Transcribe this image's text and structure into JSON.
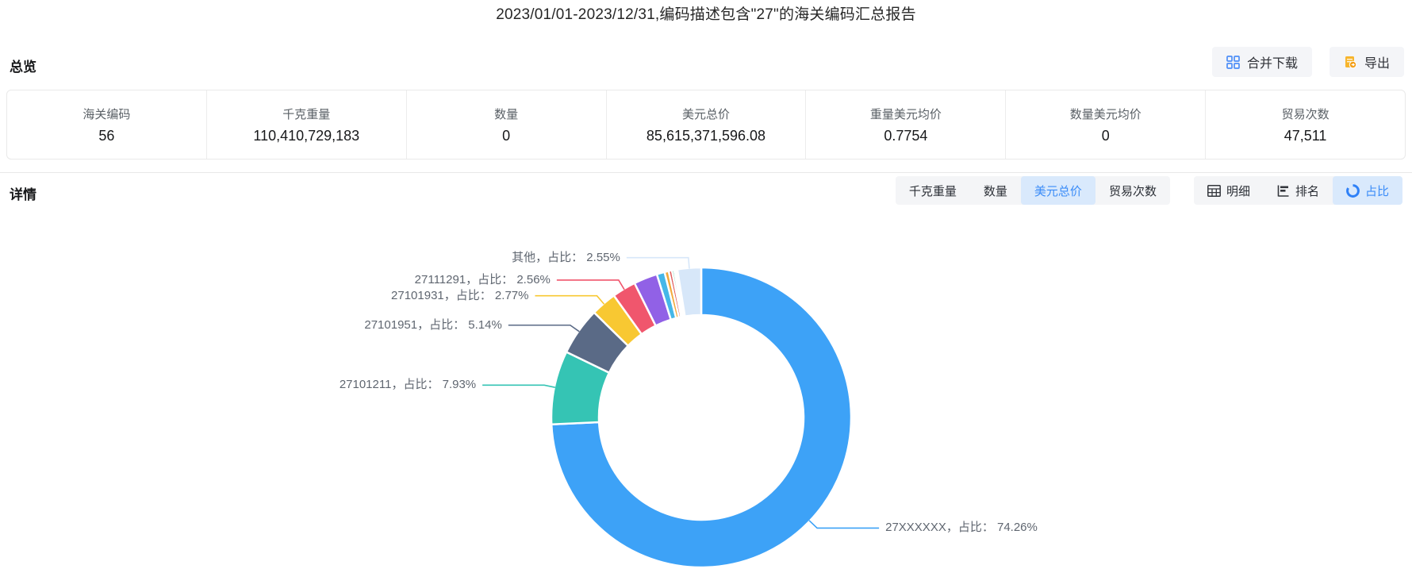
{
  "page": {
    "title": "2023/01/01-2023/12/31,编码描述包含\"27\"的海关编码汇总报告"
  },
  "overview": {
    "heading": "总览",
    "buttons": {
      "merge_download": "合并下载",
      "export": "导出"
    },
    "stats": [
      {
        "label": "海关编码",
        "value": "56"
      },
      {
        "label": "千克重量",
        "value": "110,410,729,183"
      },
      {
        "label": "数量",
        "value": "0"
      },
      {
        "label": "美元总价",
        "value": "85,615,371,596.08"
      },
      {
        "label": "重量美元均价",
        "value": "0.7754"
      },
      {
        "label": "数量美元均价",
        "value": "0"
      },
      {
        "label": "贸易次数",
        "value": "47,511"
      }
    ]
  },
  "detail": {
    "heading": "详情",
    "metric_tabs": [
      {
        "label": "千克重量",
        "active": false
      },
      {
        "label": "数量",
        "active": false
      },
      {
        "label": "美元总价",
        "active": true
      },
      {
        "label": "贸易次数",
        "active": false
      }
    ],
    "view_tabs": [
      {
        "label": "明细",
        "icon": "table-icon",
        "active": false
      },
      {
        "label": "排名",
        "icon": "ranking-icon",
        "active": false
      },
      {
        "label": "占比",
        "icon": "donut-icon",
        "active": true
      }
    ]
  },
  "chart_data": {
    "type": "pie",
    "donut": true,
    "title": "",
    "legend": "none",
    "unit": "percent",
    "segments": [
      {
        "name": "27XXXXXX",
        "value": 74.26,
        "color": "#3da2f7",
        "labeled": true,
        "callout": "27XXXXXX，占比： 74.26%"
      },
      {
        "name": "27101211",
        "value": 7.93,
        "color": "#35c4b4",
        "labeled": true,
        "callout": "27101211，占比： 7.93%"
      },
      {
        "name": "27101951",
        "value": 5.14,
        "color": "#5a6a86",
        "labeled": true,
        "callout": "27101951，占比： 5.14%"
      },
      {
        "name": "27101931",
        "value": 2.77,
        "color": "#f8c832",
        "labeled": true,
        "callout": "27101931，占比： 2.77%"
      },
      {
        "name": "27111291",
        "value": 2.56,
        "color": "#f0566d",
        "labeled": true,
        "callout": "27111291，占比： 2.56%"
      },
      {
        "name": "",
        "value": 2.55,
        "color": "#9161e6",
        "labeled": false,
        "callout": ""
      },
      {
        "name": "",
        "value": 0.85,
        "color": "#45b7e8",
        "labeled": false,
        "callout": ""
      },
      {
        "name": "",
        "value": 0.45,
        "color": "#f2a93b",
        "labeled": false,
        "callout": ""
      },
      {
        "name": "",
        "value": 0.35,
        "color": "#e05c5c",
        "labeled": false,
        "callout": ""
      },
      {
        "name": "",
        "value": 0.25,
        "color": "#3fbf8f",
        "labeled": false,
        "callout": ""
      },
      {
        "name": "",
        "value": 0.19,
        "color": "#8ecae6",
        "labeled": false,
        "callout": ""
      },
      {
        "name": "",
        "value": 0.15,
        "color": "#f4a0b5",
        "labeled": false,
        "callout": ""
      },
      {
        "name": "其他",
        "value": 2.55,
        "color": "#d7e7f9",
        "labeled": true,
        "callout": "其他，占比： 2.55%"
      }
    ]
  },
  "colors": {
    "accent_blue": "#3a8cf8",
    "tab_active_bg": "#d9e9fc",
    "button_bg": "#f4f5f8",
    "icon_blue": "#4d8ef7",
    "icon_orange": "#f7b52c",
    "label_text": "#5f6670"
  }
}
